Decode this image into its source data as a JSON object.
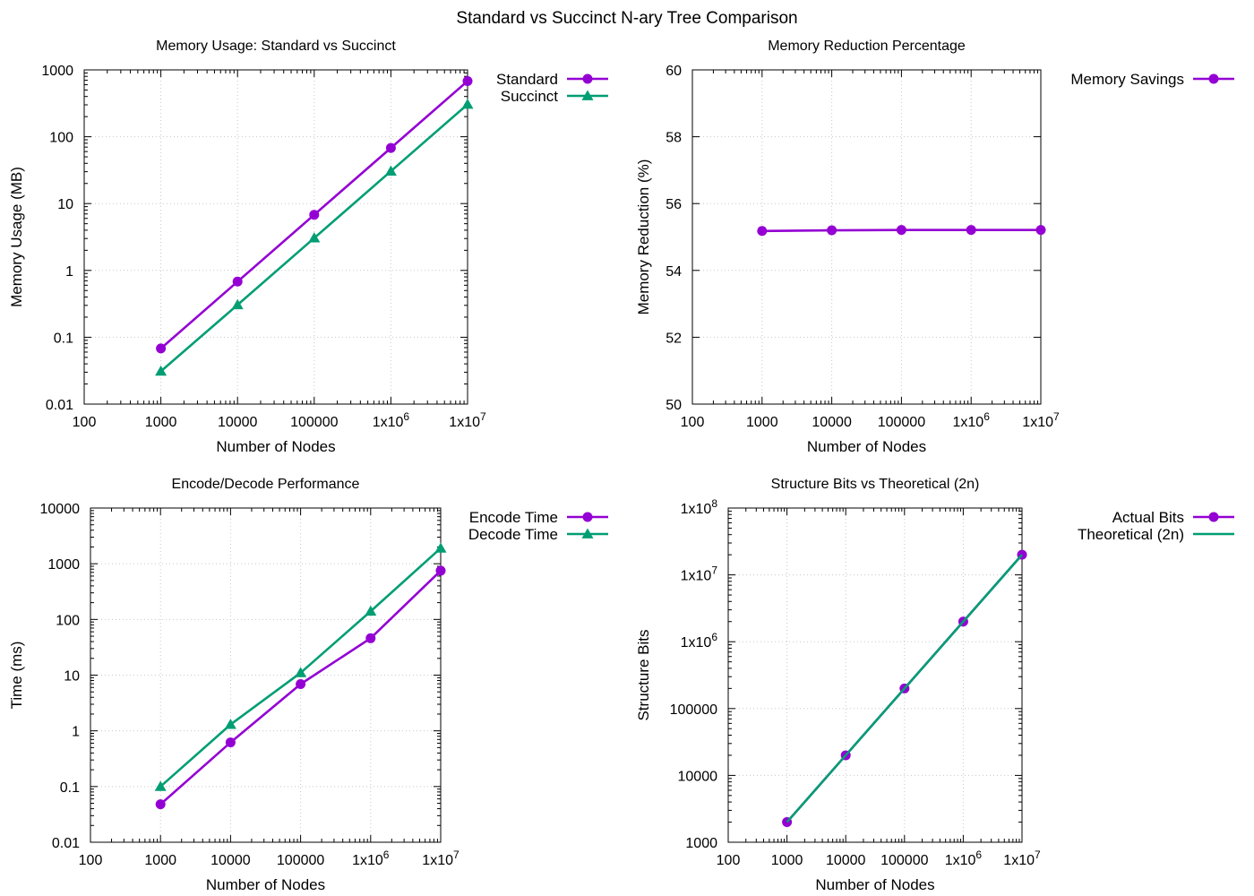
{
  "figure_title": "Standard vs Succinct N-ary Tree Comparison",
  "colors": {
    "purple": "#9400d3",
    "green": "#009e73"
  },
  "chart_data": [
    {
      "type": "line",
      "title": "Memory Usage: Standard vs Succinct",
      "xlabel": "Number of Nodes",
      "ylabel": "Memory Usage (MB)",
      "xscale": "log",
      "yscale": "log",
      "xlim": [
        100,
        10000000
      ],
      "ylim": [
        0.01,
        1000
      ],
      "grid": true,
      "legend": "top-right-outside",
      "xticks": [
        {
          "v": 100,
          "t": "100"
        },
        {
          "v": 1000,
          "t": "1000"
        },
        {
          "v": 10000,
          "t": "10000"
        },
        {
          "v": 100000,
          "t": "100000"
        },
        {
          "v": 1000000,
          "t": "1x10",
          "e": "6"
        },
        {
          "v": 10000000,
          "t": "1x10",
          "e": "7"
        }
      ],
      "yticks": [
        {
          "v": 0.01,
          "t": "0.01"
        },
        {
          "v": 0.1,
          "t": "0.1"
        },
        {
          "v": 1,
          "t": "1"
        },
        {
          "v": 10,
          "t": "10"
        },
        {
          "v": 100,
          "t": "100"
        },
        {
          "v": 1000,
          "t": "1000"
        }
      ],
      "series": [
        {
          "name": "Standard",
          "marker": "circle",
          "color": "#9400d3",
          "x": [
            1000,
            10000,
            100000,
            1000000,
            10000000
          ],
          "y": [
            0.068,
            0.68,
            6.8,
            68,
            680
          ]
        },
        {
          "name": "Succinct",
          "marker": "triangle",
          "color": "#009e73",
          "x": [
            1000,
            10000,
            100000,
            1000000,
            10000000
          ],
          "y": [
            0.031,
            0.305,
            3.05,
            30.5,
            305
          ]
        }
      ]
    },
    {
      "type": "line",
      "title": "Memory Reduction Percentage",
      "xlabel": "Number of Nodes",
      "ylabel": "Memory Reduction (%)",
      "xscale": "log",
      "yscale": "linear",
      "xlim": [
        100,
        10000000
      ],
      "ylim": [
        50,
        60
      ],
      "grid": true,
      "legend": "top-right-outside",
      "xticks": [
        {
          "v": 100,
          "t": "100"
        },
        {
          "v": 1000,
          "t": "1000"
        },
        {
          "v": 10000,
          "t": "10000"
        },
        {
          "v": 100000,
          "t": "100000"
        },
        {
          "v": 1000000,
          "t": "1x10",
          "e": "6"
        },
        {
          "v": 10000000,
          "t": "1x10",
          "e": "7"
        }
      ],
      "yticks": [
        {
          "v": 50,
          "t": "50"
        },
        {
          "v": 52,
          "t": "52"
        },
        {
          "v": 54,
          "t": "54"
        },
        {
          "v": 56,
          "t": "56"
        },
        {
          "v": 58,
          "t": "58"
        },
        {
          "v": 60,
          "t": "60"
        }
      ],
      "series": [
        {
          "name": "Memory Savings",
          "marker": "circle",
          "color": "#9400d3",
          "x": [
            1000,
            10000,
            100000,
            1000000,
            10000000
          ],
          "y": [
            55.18,
            55.2,
            55.21,
            55.21,
            55.21
          ]
        }
      ]
    },
    {
      "type": "line",
      "title": "Encode/Decode Performance",
      "xlabel": "Number of Nodes",
      "ylabel": "Time (ms)",
      "xscale": "log",
      "yscale": "log",
      "xlim": [
        100,
        10000000
      ],
      "ylim": [
        0.01,
        10000
      ],
      "grid": true,
      "legend": "top-right-outside",
      "xticks": [
        {
          "v": 100,
          "t": "100"
        },
        {
          "v": 1000,
          "t": "1000"
        },
        {
          "v": 10000,
          "t": "10000"
        },
        {
          "v": 100000,
          "t": "100000"
        },
        {
          "v": 1000000,
          "t": "1x10",
          "e": "6"
        },
        {
          "v": 10000000,
          "t": "1x10",
          "e": "7"
        }
      ],
      "yticks": [
        {
          "v": 0.01,
          "t": "0.01"
        },
        {
          "v": 0.1,
          "t": "0.1"
        },
        {
          "v": 1,
          "t": "1"
        },
        {
          "v": 10,
          "t": "10"
        },
        {
          "v": 100,
          "t": "100"
        },
        {
          "v": 1000,
          "t": "1000"
        },
        {
          "v": 10000,
          "t": "10000"
        }
      ],
      "series": [
        {
          "name": "Encode Time",
          "marker": "circle",
          "color": "#9400d3",
          "x": [
            1000,
            10000,
            100000,
            1000000,
            10000000
          ],
          "y": [
            0.048,
            0.62,
            6.9,
            46,
            750
          ]
        },
        {
          "name": "Decode Time",
          "marker": "triangle",
          "color": "#009e73",
          "x": [
            1000,
            10000,
            100000,
            1000000,
            10000000
          ],
          "y": [
            0.1,
            1.3,
            11,
            140,
            1900
          ]
        }
      ]
    },
    {
      "type": "line",
      "title": "Structure Bits vs Theoretical (2n)",
      "xlabel": "Number of Nodes",
      "ylabel": "Structure Bits",
      "xscale": "log",
      "yscale": "log",
      "xlim": [
        100,
        10000000
      ],
      "ylim": [
        1000,
        100000000
      ],
      "grid": true,
      "legend": "top-right-outside",
      "xticks": [
        {
          "v": 100,
          "t": "100"
        },
        {
          "v": 1000,
          "t": "1000"
        },
        {
          "v": 10000,
          "t": "10000"
        },
        {
          "v": 100000,
          "t": "100000"
        },
        {
          "v": 1000000,
          "t": "1x10",
          "e": "6"
        },
        {
          "v": 10000000,
          "t": "1x10",
          "e": "7"
        }
      ],
      "yticks": [
        {
          "v": 1000,
          "t": "1000"
        },
        {
          "v": 10000,
          "t": "10000"
        },
        {
          "v": 100000,
          "t": "100000"
        },
        {
          "v": 1000000,
          "t": "1x10",
          "e": "6"
        },
        {
          "v": 10000000,
          "t": "1x10",
          "e": "7"
        },
        {
          "v": 100000000,
          "t": "1x10",
          "e": "8"
        }
      ],
      "series": [
        {
          "name": "Actual Bits",
          "marker": "circle",
          "color": "#9400d3",
          "x": [
            1000,
            10000,
            100000,
            1000000,
            10000000
          ],
          "y": [
            2000,
            20000,
            200000,
            2000000,
            20000000
          ]
        },
        {
          "name": "Theoretical (2n)",
          "marker": "none",
          "color": "#009e73",
          "line_on_top": true,
          "x": [
            1000,
            10000,
            100000,
            1000000,
            10000000
          ],
          "y": [
            2000,
            20000,
            200000,
            2000000,
            20000000
          ]
        }
      ]
    }
  ]
}
